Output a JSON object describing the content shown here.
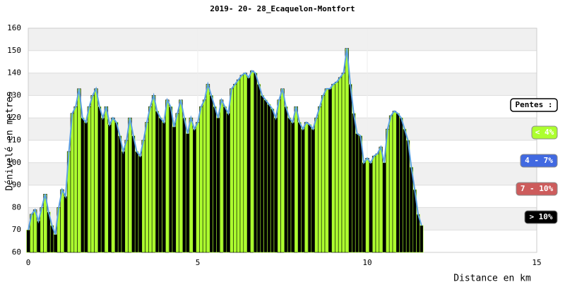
{
  "chart_data": {
    "type": "elevation",
    "title": "2019- 20- 28_Ecaquelon-Montfort",
    "y_label": "Dénivelé en metres",
    "x_label": "Distance en km",
    "xlim": [
      0,
      15
    ],
    "xticks": [
      0,
      5,
      10,
      15
    ],
    "ylim": [
      60,
      160
    ],
    "yticks": [
      60,
      70,
      80,
      90,
      100,
      110,
      120,
      130,
      140,
      150,
      160
    ],
    "line_color": "#5aa0e0",
    "x": [
      0,
      0.1,
      0.2,
      0.3,
      0.4,
      0.5,
      0.6,
      0.7,
      0.8,
      0.9,
      1.0,
      1.1,
      1.2,
      1.3,
      1.4,
      1.5,
      1.6,
      1.7,
      1.8,
      1.9,
      2.0,
      2.1,
      2.2,
      2.3,
      2.4,
      2.5,
      2.6,
      2.7,
      2.8,
      2.9,
      3.0,
      3.1,
      3.2,
      3.3,
      3.4,
      3.5,
      3.6,
      3.7,
      3.8,
      3.9,
      4.0,
      4.1,
      4.2,
      4.3,
      4.4,
      4.5,
      4.6,
      4.7,
      4.8,
      4.9,
      5.0,
      5.1,
      5.2,
      5.3,
      5.4,
      5.5,
      5.6,
      5.7,
      5.8,
      5.9,
      6.0,
      6.1,
      6.2,
      6.3,
      6.4,
      6.5,
      6.6,
      6.7,
      6.8,
      6.9,
      7.0,
      7.1,
      7.2,
      7.3,
      7.4,
      7.5,
      7.6,
      7.7,
      7.8,
      7.9,
      8.0,
      8.1,
      8.2,
      8.3,
      8.4,
      8.5,
      8.6,
      8.7,
      8.8,
      8.9,
      9.0,
      9.1,
      9.2,
      9.3,
      9.4,
      9.5,
      9.6,
      9.7,
      9.8,
      9.9,
      10.0,
      10.1,
      10.2,
      10.3,
      10.4,
      10.5,
      10.6,
      10.7,
      10.8,
      10.9,
      11.0,
      11.1,
      11.2,
      11.3,
      11.4,
      11.5,
      11.6
    ],
    "values": [
      70,
      77,
      79,
      74,
      80,
      86,
      78,
      72,
      68,
      80,
      88,
      85,
      105,
      122,
      125,
      133,
      120,
      118,
      125,
      130,
      133,
      125,
      120,
      125,
      117,
      120,
      118,
      112,
      105,
      110,
      120,
      112,
      105,
      103,
      110,
      118,
      125,
      130,
      123,
      120,
      118,
      128,
      125,
      116,
      122,
      128,
      120,
      113,
      120,
      115,
      118,
      125,
      128,
      135,
      130,
      125,
      120,
      128,
      125,
      122,
      133,
      135,
      137,
      139,
      140,
      138,
      141,
      140,
      135,
      130,
      128,
      126,
      124,
      120,
      128,
      133,
      125,
      120,
      118,
      125,
      118,
      115,
      118,
      117,
      115,
      120,
      125,
      130,
      133,
      133,
      135,
      136,
      138,
      140,
      151,
      135,
      122,
      113,
      112,
      100,
      102,
      100,
      103,
      104,
      107,
      100,
      115,
      121,
      123,
      122,
      120,
      115,
      110,
      98,
      88,
      77,
      72
    ],
    "legend_title": "Pentes :",
    "legend": [
      {
        "label": "< 4%",
        "color": "#adff2f"
      },
      {
        "label": "4 - 7%",
        "color": "#4169e1"
      },
      {
        "label": "7 - 10%",
        "color": "#cd5c5c"
      },
      {
        "label": "> 10%",
        "color": "#000000"
      }
    ]
  }
}
